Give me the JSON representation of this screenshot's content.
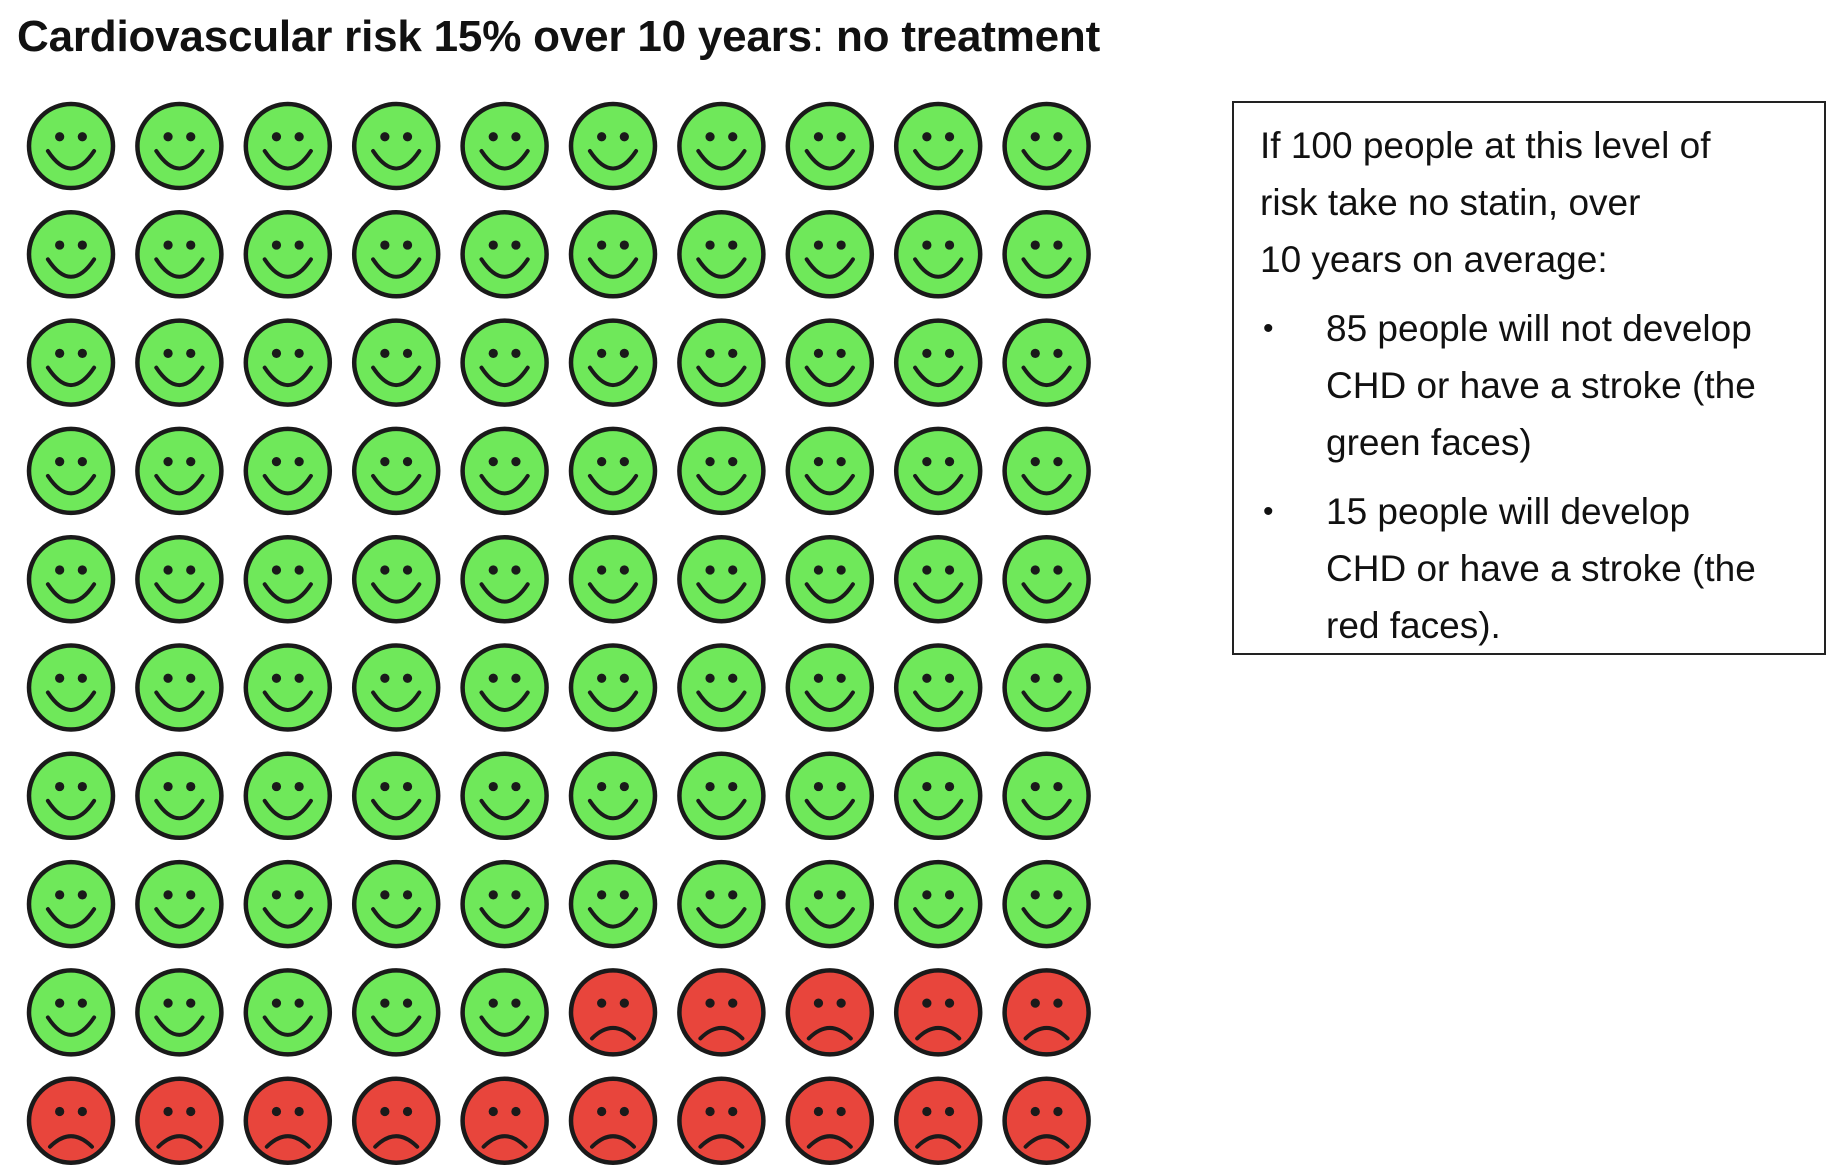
{
  "title": {
    "main": "Cardiovascular risk 15% over 10 years",
    "separator": ": ",
    "sub": "no treatment"
  },
  "info_box": {
    "intro": "If 100 people at this level of\nrisk take no statin, over\n10 years on average:",
    "bullets": [
      "85 people will not develop\nCHD or have a stroke (the\ngreen faces)",
      "15 people will develop\nCHD or have a stroke (the\nred faces)."
    ],
    "bullet_symbol": "•"
  },
  "colors": {
    "green_face": "#6fe85a",
    "red_face": "#e8453c",
    "outline": "#1a1a1a"
  },
  "chart_data": {
    "type": "pictogram",
    "total": 100,
    "rows": 10,
    "columns": 10,
    "order": "row-major",
    "series": [
      {
        "category": "no-event",
        "face": "smiling",
        "color": "#6fe85a",
        "count": 85
      },
      {
        "category": "event",
        "face": "frowning",
        "color": "#e8453c",
        "count": 15
      }
    ]
  }
}
